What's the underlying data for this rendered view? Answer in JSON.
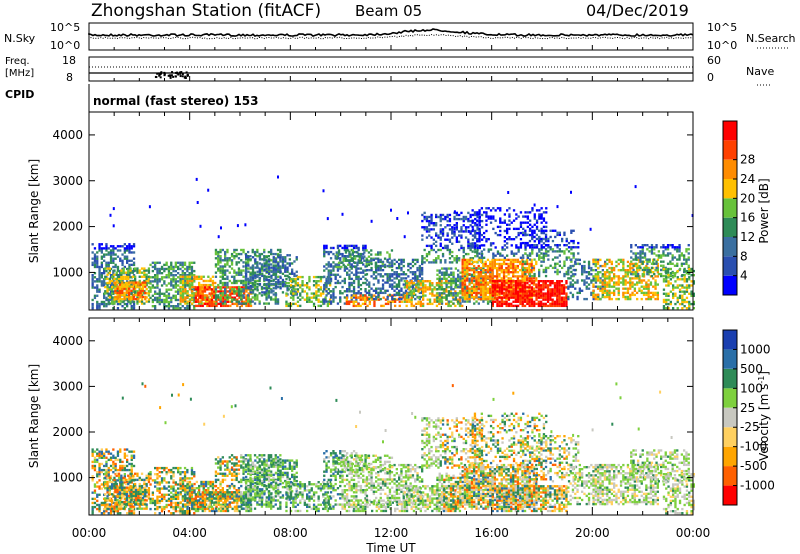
{
  "header": {
    "title": "Zhongshan Station (fitACF)",
    "beam": "Beam 05",
    "date": "04/Dec/2019"
  },
  "panels": {
    "nsky": {
      "left_label": "N.Sky",
      "ticks_left": [
        "10^5",
        "10^0"
      ],
      "ticks_right": [
        "10^5",
        "10^0"
      ],
      "right_label": "N.Search"
    },
    "freq": {
      "left_label_line1": "Freq.",
      "left_label_line2": "[MHz]",
      "ticks_left": [
        "18",
        "8"
      ],
      "ticks_right": [
        "60",
        "0"
      ],
      "right_label": "Nave"
    },
    "cpid": {
      "left_label": "CPID",
      "text": "normal (fast stereo) 153"
    }
  },
  "colors": {
    "power": [
      "#0000ff",
      "#2a4fb0",
      "#3a6fa0",
      "#2e8b57",
      "#67c23a",
      "#ffc000",
      "#ff8c00",
      "#ff4000",
      "#ff0000"
    ],
    "velocity": [
      "#ff0000",
      "#ff6000",
      "#ffa500",
      "#ffd060",
      "#c8c8c0",
      "#7ed03e",
      "#2e8b57",
      "#2a6fa8",
      "#1a3fb0"
    ]
  },
  "chart_data": [
    {
      "type": "heatmap",
      "title": "Power",
      "ylabel": "Slant Range [km]",
      "ylim": [
        180,
        4500
      ],
      "y_ticks": [
        1000,
        2000,
        3000,
        4000
      ],
      "xlim": [
        0,
        24
      ],
      "colorbar": {
        "label": "Power [dB]",
        "range": [
          0,
          30
        ],
        "ticks": [
          "4",
          "8",
          "12",
          "16",
          "20",
          "24",
          "28"
        ]
      }
    },
    {
      "type": "heatmap",
      "title": "Velocity",
      "ylabel": "Slant Range [km]",
      "ylim": [
        180,
        4500
      ],
      "y_ticks": [
        1000,
        2000,
        3000,
        4000
      ],
      "xlim": [
        0,
        24
      ],
      "xlabel": "Time UT",
      "x_ticks": [
        "00:00",
        "04:00",
        "08:00",
        "12:00",
        "16:00",
        "20:00",
        "00:00"
      ],
      "colorbar": {
        "label": "Velocity [m s^-1]",
        "ticks": [
          "1000",
          "500",
          "100",
          "25",
          "-25",
          "-100",
          "-500",
          "-1000"
        ]
      }
    }
  ]
}
